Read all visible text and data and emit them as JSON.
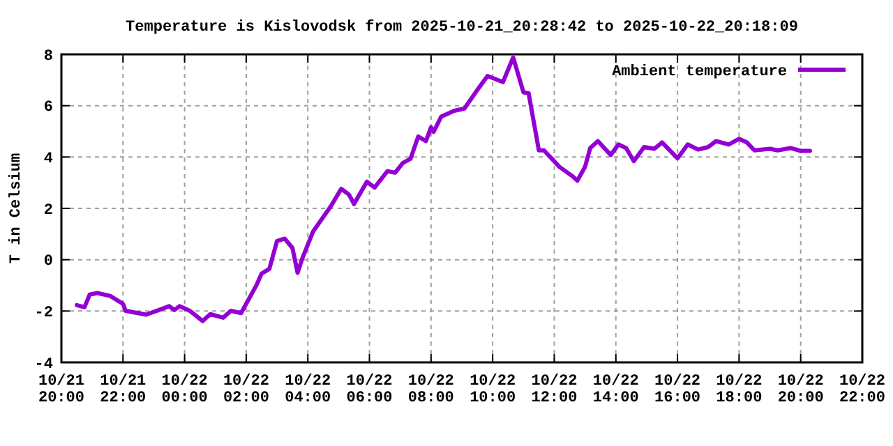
{
  "chart_data": {
    "type": "line",
    "title": "Temperature is Kislovodsk from 2025-10-21_20:28:42 to 2025-10-22_20:18:09",
    "ylabel": "T in Celsium",
    "x": [
      "2025-10-21T20:30",
      "2025-10-21T20:45",
      "2025-10-21T20:55",
      "2025-10-21T21:10",
      "2025-10-21T21:35",
      "2025-10-21T22:00",
      "2025-10-21T22:05",
      "2025-10-21T22:45",
      "2025-10-21T23:10",
      "2025-10-21T23:30",
      "2025-10-21T23:40",
      "2025-10-21T23:50",
      "2025-10-22T00:10",
      "2025-10-22T00:35",
      "2025-10-22T00:50",
      "2025-10-22T01:15",
      "2025-10-22T01:30",
      "2025-10-22T01:50",
      "2025-10-22T02:20",
      "2025-10-22T02:30",
      "2025-10-22T02:45",
      "2025-10-22T03:00",
      "2025-10-22T03:15",
      "2025-10-22T03:30",
      "2025-10-22T03:40",
      "2025-10-22T03:50",
      "2025-10-22T04:10",
      "2025-10-22T04:45",
      "2025-10-22T05:05",
      "2025-10-22T05:20",
      "2025-10-22T05:30",
      "2025-10-22T05:55",
      "2025-10-22T06:10",
      "2025-10-22T06:35",
      "2025-10-22T06:50",
      "2025-10-22T07:05",
      "2025-10-22T07:20",
      "2025-10-22T07:35",
      "2025-10-22T07:50",
      "2025-10-22T08:00",
      "2025-10-22T08:05",
      "2025-10-22T08:20",
      "2025-10-22T08:45",
      "2025-10-22T09:05",
      "2025-10-22T09:30",
      "2025-10-22T09:50",
      "2025-10-22T10:20",
      "2025-10-22T10:40",
      "2025-10-22T11:00",
      "2025-10-22T11:10",
      "2025-10-22T11:30",
      "2025-10-22T11:40",
      "2025-10-22T12:10",
      "2025-10-22T12:35",
      "2025-10-22T12:45",
      "2025-10-22T13:00",
      "2025-10-22T13:10",
      "2025-10-22T13:25",
      "2025-10-22T13:50",
      "2025-10-22T14:05",
      "2025-10-22T14:20",
      "2025-10-22T14:35",
      "2025-10-22T14:55",
      "2025-10-22T15:15",
      "2025-10-22T15:30",
      "2025-10-22T16:00",
      "2025-10-22T16:20",
      "2025-10-22T16:40",
      "2025-10-22T17:00",
      "2025-10-22T17:15",
      "2025-10-22T17:40",
      "2025-10-22T18:00",
      "2025-10-22T18:15",
      "2025-10-22T18:30",
      "2025-10-22T19:00",
      "2025-10-22T19:15",
      "2025-10-22T19:40",
      "2025-10-22T20:00",
      "2025-10-22T20:18"
    ],
    "series": [
      {
        "name": "Ambient temperature",
        "color": "#9400d3",
        "values": [
          -1.77,
          -1.85,
          -1.36,
          -1.3,
          -1.41,
          -1.72,
          -1.99,
          -2.14,
          -1.96,
          -1.81,
          -1.96,
          -1.81,
          -1.99,
          -2.39,
          -2.12,
          -2.26,
          -1.99,
          -2.08,
          -0.99,
          -0.54,
          -0.36,
          0.73,
          0.82,
          0.46,
          -0.51,
          0.09,
          1.09,
          2.09,
          2.76,
          2.54,
          2.17,
          3.04,
          2.81,
          3.45,
          3.39,
          3.77,
          3.93,
          4.8,
          4.62,
          5.16,
          4.98,
          5.58,
          5.8,
          5.89,
          6.61,
          7.16,
          6.92,
          7.88,
          6.52,
          6.49,
          4.26,
          4.26,
          3.62,
          3.26,
          3.08,
          3.62,
          4.35,
          4.62,
          4.08,
          4.49,
          4.35,
          3.84,
          4.39,
          4.32,
          4.57,
          3.95,
          4.49,
          4.29,
          4.39,
          4.62,
          4.49,
          4.71,
          4.57,
          4.26,
          4.32,
          4.26,
          4.35,
          4.24,
          4.24
        ]
      }
    ],
    "xlim": [
      "2025-10-21T20:00",
      "2025-10-22T22:00"
    ],
    "xticks": [
      {
        "value": "2025-10-21T20:00",
        "label": "10/21\n20:00"
      },
      {
        "value": "2025-10-21T22:00",
        "label": "10/21\n22:00"
      },
      {
        "value": "2025-10-22T00:00",
        "label": "10/22\n00:00"
      },
      {
        "value": "2025-10-22T02:00",
        "label": "10/22\n02:00"
      },
      {
        "value": "2025-10-22T04:00",
        "label": "10/22\n04:00"
      },
      {
        "value": "2025-10-22T06:00",
        "label": "10/22\n06:00"
      },
      {
        "value": "2025-10-22T08:00",
        "label": "10/22\n08:00"
      },
      {
        "value": "2025-10-22T10:00",
        "label": "10/22\n10:00"
      },
      {
        "value": "2025-10-22T12:00",
        "label": "10/22\n12:00"
      },
      {
        "value": "2025-10-22T14:00",
        "label": "10/22\n14:00"
      },
      {
        "value": "2025-10-22T16:00",
        "label": "10/22\n16:00"
      },
      {
        "value": "2025-10-22T18:00",
        "label": "10/22\n18:00"
      },
      {
        "value": "2025-10-22T20:00",
        "label": "10/22\n20:00"
      },
      {
        "value": "2025-10-22T22:00",
        "label": "10/22\n22:00"
      }
    ],
    "ylim": [
      -4,
      8
    ],
    "yticks": [
      -4,
      -2,
      0,
      2,
      4,
      6,
      8
    ],
    "grid": true,
    "legend": "top right",
    "line_style": "solid",
    "marker": "none"
  }
}
